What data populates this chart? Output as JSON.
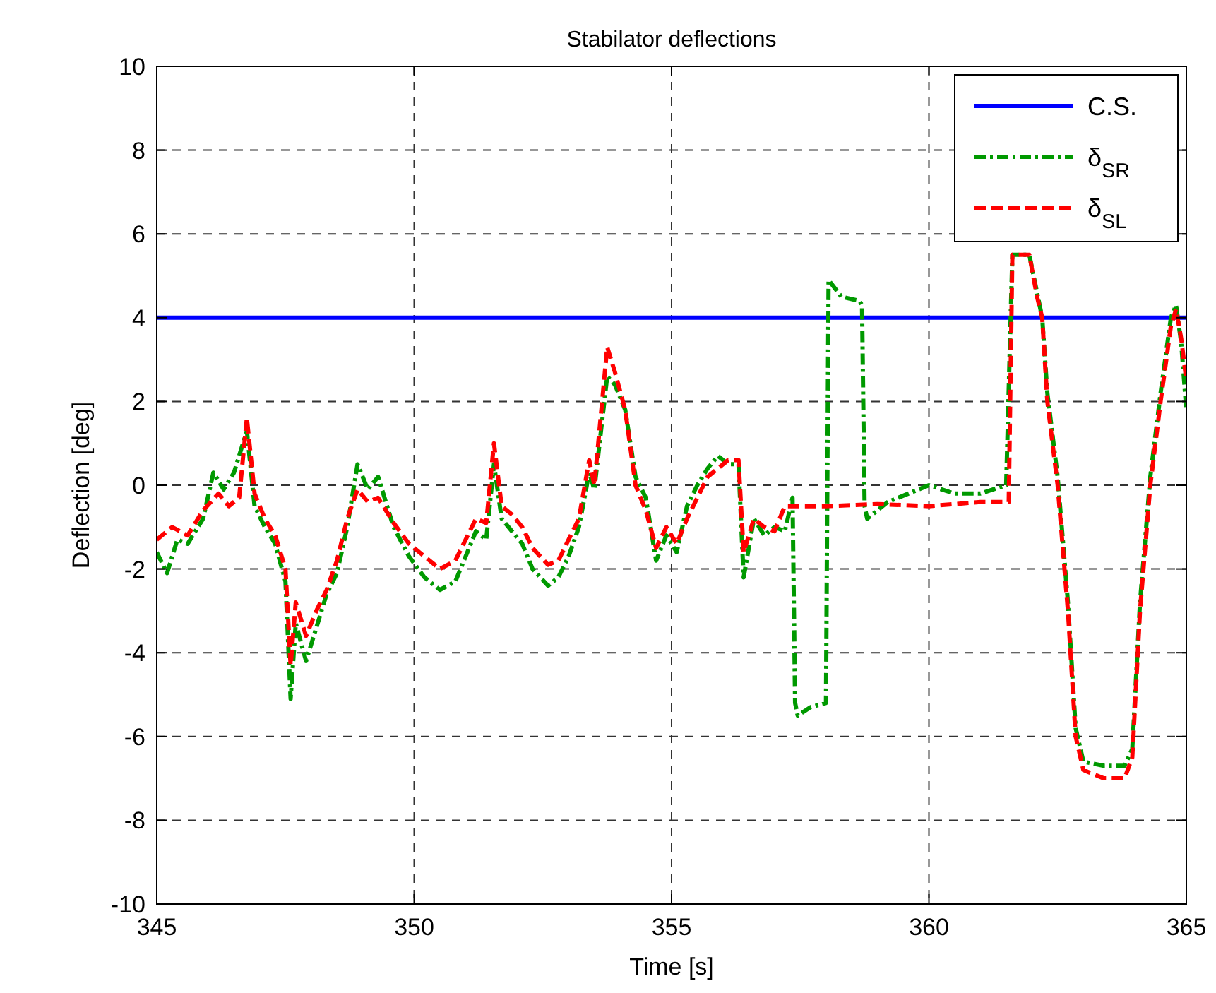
{
  "chart_data": {
    "type": "line",
    "title": "Stabilator deflections",
    "xlabel": "Time [s]",
    "ylabel": "Deflection [deg]",
    "xlim": [
      345,
      365
    ],
    "xticks": [
      345,
      350,
      355,
      360,
      365
    ],
    "ylim": [
      -10,
      10
    ],
    "yticks": [
      -10,
      -8,
      -6,
      -4,
      -2,
      0,
      2,
      4,
      6,
      8,
      10
    ],
    "grid": true,
    "legend": "top right",
    "marker": "none",
    "series": [
      {
        "name": "C.S.",
        "color": "#0000ff",
        "line_style": "solid",
        "x": [
          345,
          365
        ],
        "values": [
          4,
          4
        ]
      },
      {
        "name": "δ$_{SR}$",
        "color": "#009900",
        "line_style": "dashdot",
        "x": [
          345.0,
          345.2,
          345.4,
          345.6,
          345.9,
          346.1,
          346.3,
          346.5,
          346.75,
          346.9,
          347.1,
          347.3,
          347.5,
          347.6,
          347.7,
          347.9,
          348.1,
          348.3,
          348.5,
          348.7,
          348.9,
          349.1,
          349.3,
          349.6,
          349.9,
          350.2,
          350.5,
          350.8,
          351.0,
          351.2,
          351.4,
          351.55,
          351.7,
          351.9,
          352.1,
          352.3,
          352.6,
          352.8,
          353.0,
          353.2,
          353.4,
          353.5,
          353.75,
          353.9,
          354.1,
          354.3,
          354.5,
          354.7,
          354.9,
          355.1,
          355.3,
          355.5,
          355.7,
          355.9,
          356.1,
          356.3,
          356.4,
          356.6,
          356.8,
          357.0,
          357.2,
          357.35,
          357.4,
          357.45,
          357.7,
          358.0,
          358.05,
          358.3,
          358.65,
          358.7,
          358.75,
          358.8,
          359.2,
          359.6,
          360.0,
          360.5,
          361.0,
          361.5,
          361.62,
          361.95,
          362.1,
          362.2,
          362.3,
          362.5,
          362.7,
          362.85,
          363.0,
          363.4,
          363.8,
          363.95,
          364.1,
          364.3,
          364.5,
          364.7,
          364.8,
          364.9,
          365.0
        ],
        "values": [
          -1.6,
          -2.1,
          -1.3,
          -1.4,
          -0.8,
          0.3,
          -0.1,
          0.3,
          1.3,
          -0.5,
          -1.0,
          -1.4,
          -2.3,
          -5.1,
          -3.3,
          -4.2,
          -3.4,
          -2.6,
          -2.1,
          -1.0,
          0.5,
          -0.1,
          0.2,
          -1.0,
          -1.7,
          -2.2,
          -2.5,
          -2.3,
          -1.7,
          -1.1,
          -1.3,
          0.5,
          -0.8,
          -1.1,
          -1.4,
          -2.0,
          -2.4,
          -2.2,
          -1.7,
          -1.0,
          0.3,
          -0.1,
          2.6,
          2.4,
          1.8,
          0.2,
          -0.3,
          -1.8,
          -1.2,
          -1.6,
          -0.5,
          0.0,
          0.4,
          0.7,
          0.5,
          0.5,
          -2.2,
          -0.8,
          -1.2,
          -1.0,
          -1.1,
          -0.3,
          -5.2,
          -5.5,
          -5.3,
          -5.2,
          4.9,
          4.5,
          4.4,
          4.3,
          -0.5,
          -0.8,
          -0.4,
          -0.2,
          0.0,
          -0.2,
          -0.2,
          0.0,
          5.5,
          5.5,
          4.6,
          4.0,
          2.2,
          0.2,
          -2.8,
          -5.8,
          -6.6,
          -6.7,
          -6.7,
          -6.3,
          -2.8,
          0.2,
          2.2,
          4.0,
          4.3,
          3.4,
          1.8
        ]
      },
      {
        "name": "δ$_{SL}$",
        "color": "#ff0000",
        "line_style": "dashed",
        "x": [
          345.0,
          345.3,
          345.6,
          345.9,
          346.2,
          346.4,
          346.6,
          346.75,
          346.9,
          347.1,
          347.3,
          347.5,
          347.6,
          347.7,
          347.9,
          348.1,
          348.3,
          348.5,
          348.7,
          348.9,
          349.1,
          349.3,
          349.6,
          349.9,
          350.2,
          350.5,
          350.8,
          351.0,
          351.2,
          351.4,
          351.55,
          351.7,
          351.9,
          352.1,
          352.3,
          352.6,
          352.8,
          353.0,
          353.2,
          353.4,
          353.5,
          353.75,
          353.9,
          354.1,
          354.3,
          354.5,
          354.7,
          354.9,
          355.1,
          355.3,
          355.5,
          355.7,
          355.9,
          356.1,
          356.3,
          356.4,
          356.6,
          356.8,
          357.0,
          357.2,
          357.4,
          358.0,
          359.0,
          360.0,
          361.0,
          361.55,
          361.62,
          361.95,
          362.1,
          362.2,
          362.3,
          362.5,
          362.7,
          362.85,
          363.0,
          363.4,
          363.8,
          363.95,
          364.1,
          364.3,
          364.5,
          364.7,
          364.8,
          364.9,
          365.0
        ],
        "values": [
          -1.3,
          -1.0,
          -1.2,
          -0.6,
          -0.2,
          -0.5,
          -0.3,
          1.6,
          -0.2,
          -0.8,
          -1.2,
          -2.0,
          -4.3,
          -2.8,
          -3.6,
          -3.0,
          -2.5,
          -1.8,
          -0.8,
          -0.1,
          -0.4,
          -0.3,
          -0.9,
          -1.4,
          -1.7,
          -2.0,
          -1.8,
          -1.3,
          -0.8,
          -0.9,
          1.0,
          -0.5,
          -0.7,
          -1.0,
          -1.5,
          -1.9,
          -1.8,
          -1.3,
          -0.8,
          0.6,
          0.0,
          3.3,
          2.7,
          1.8,
          0.0,
          -0.6,
          -1.5,
          -1.0,
          -1.4,
          -0.8,
          -0.3,
          0.2,
          0.4,
          0.6,
          0.6,
          -1.6,
          -0.8,
          -1.0,
          -1.1,
          -0.5,
          -0.5,
          -0.5,
          -0.45,
          -0.5,
          -0.4,
          -0.4,
          5.5,
          5.5,
          4.5,
          4.0,
          2.0,
          0.0,
          -3.0,
          -6.0,
          -6.8,
          -7.0,
          -7.0,
          -6.5,
          -3.0,
          0.0,
          2.0,
          3.8,
          4.2,
          3.5,
          2.5
        ]
      }
    ]
  }
}
